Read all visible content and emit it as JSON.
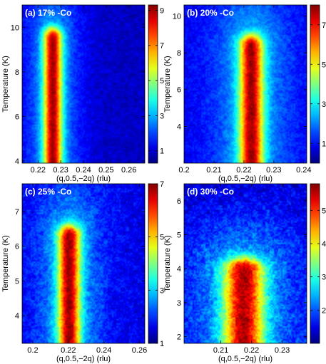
{
  "chart_data": [
    {
      "type": "heatmap",
      "title": "(a) 17% -Co",
      "xlabel": "(q,0.5,−2q) (rlu)",
      "ylabel": "Temperature (K)",
      "xlim": [
        0.213,
        0.267
      ],
      "ylim": [
        3.9,
        11.0
      ],
      "xticks": [
        0.22,
        0.23,
        0.24,
        0.25,
        0.26
      ],
      "xticklabels": [
        "0.22",
        "0.23",
        "0.24",
        "0.25",
        "0.26"
      ],
      "yticks": [
        4,
        6,
        8,
        10
      ],
      "yticklabels": [
        "4",
        "6",
        "8",
        "10"
      ],
      "colorbar": {
        "min": 0.3,
        "max": 9.3,
        "ticks": [
          1,
          3,
          5,
          7,
          9
        ],
        "ticklabels": [
          "1",
          "3",
          "5",
          "7",
          "9"
        ]
      },
      "peak": {
        "center_q": 0.2265,
        "width_q": 0.0028,
        "top_T": 9.5,
        "intensity": 9.0,
        "background": 0.9
      }
    },
    {
      "type": "heatmap",
      "title": "(b) 20% -Co",
      "xlabel": "(q,0.5,−2q) (rlu)",
      "ylabel": "Temperature (K)",
      "xlim": [
        0.2,
        0.241
      ],
      "ylim": [
        2.0,
        10.6
      ],
      "xticks": [
        0.2,
        0.21,
        0.22,
        0.23,
        0.24
      ],
      "xticklabels": [
        "0.2",
        "0.21",
        "0.22",
        "0.23",
        "0.24"
      ],
      "yticks": [
        4,
        6,
        8,
        10
      ],
      "yticklabels": [
        "4",
        "6",
        "8",
        "10"
      ],
      "colorbar": {
        "min": 0.0,
        "max": 8.0,
        "ticks": [
          1,
          3,
          5,
          7
        ],
        "ticklabels": [
          "1",
          "3",
          "5",
          "7"
        ]
      },
      "peak": {
        "center_q": 0.2225,
        "width_q": 0.0027,
        "top_T": 8.4,
        "intensity": 7.8,
        "background": 0.9
      }
    },
    {
      "type": "heatmap",
      "title": "(c) 25% -Co",
      "xlabel": "(q,0.5,−2q) (rlu)",
      "ylabel": "Temperature (K)",
      "xlim": [
        0.194,
        0.263
      ],
      "ylim": [
        3.2,
        7.8
      ],
      "xticks": [
        0.2,
        0.22,
        0.24,
        0.26
      ],
      "xticklabels": [
        "0.2",
        "0.22",
        "0.24",
        "0.26"
      ],
      "yticks": [
        4,
        5,
        6,
        7
      ],
      "yticklabels": [
        "4",
        "5",
        "6",
        "7"
      ],
      "colorbar": {
        "min": 1.0,
        "max": 7.0,
        "ticks": [
          1,
          3,
          5,
          7
        ],
        "ticklabels": [
          "1",
          "3",
          "5",
          "7"
        ]
      },
      "peak": {
        "center_q": 0.2205,
        "width_q": 0.0042,
        "top_T": 6.3,
        "intensity": 6.9,
        "background": 1.6
      }
    },
    {
      "type": "heatmap",
      "title": "(d) 30% -Co",
      "xlabel": "(q,0.5,−2q) (rlu)",
      "ylabel": "Temperature (K)",
      "xlim": [
        0.198,
        0.238
      ],
      "ylim": [
        1.8,
        6.5
      ],
      "xticks": [
        0.21,
        0.22,
        0.23
      ],
      "xticklabels": [
        "0.21",
        "0.22",
        "0.23"
      ],
      "yticks": [
        2,
        3,
        4,
        5,
        6
      ],
      "yticklabels": [
        "2",
        "3",
        "4",
        "5",
        "6"
      ],
      "colorbar": {
        "min": 1.0,
        "max": 5.8,
        "ticks": [
          2,
          3,
          4,
          5
        ],
        "ticklabels": [
          "2",
          "3",
          "4",
          "5"
        ]
      },
      "peak": {
        "center_q": 0.2175,
        "width_q": 0.0045,
        "top_T": 4.0,
        "intensity": 5.6,
        "background": 1.4
      }
    }
  ]
}
